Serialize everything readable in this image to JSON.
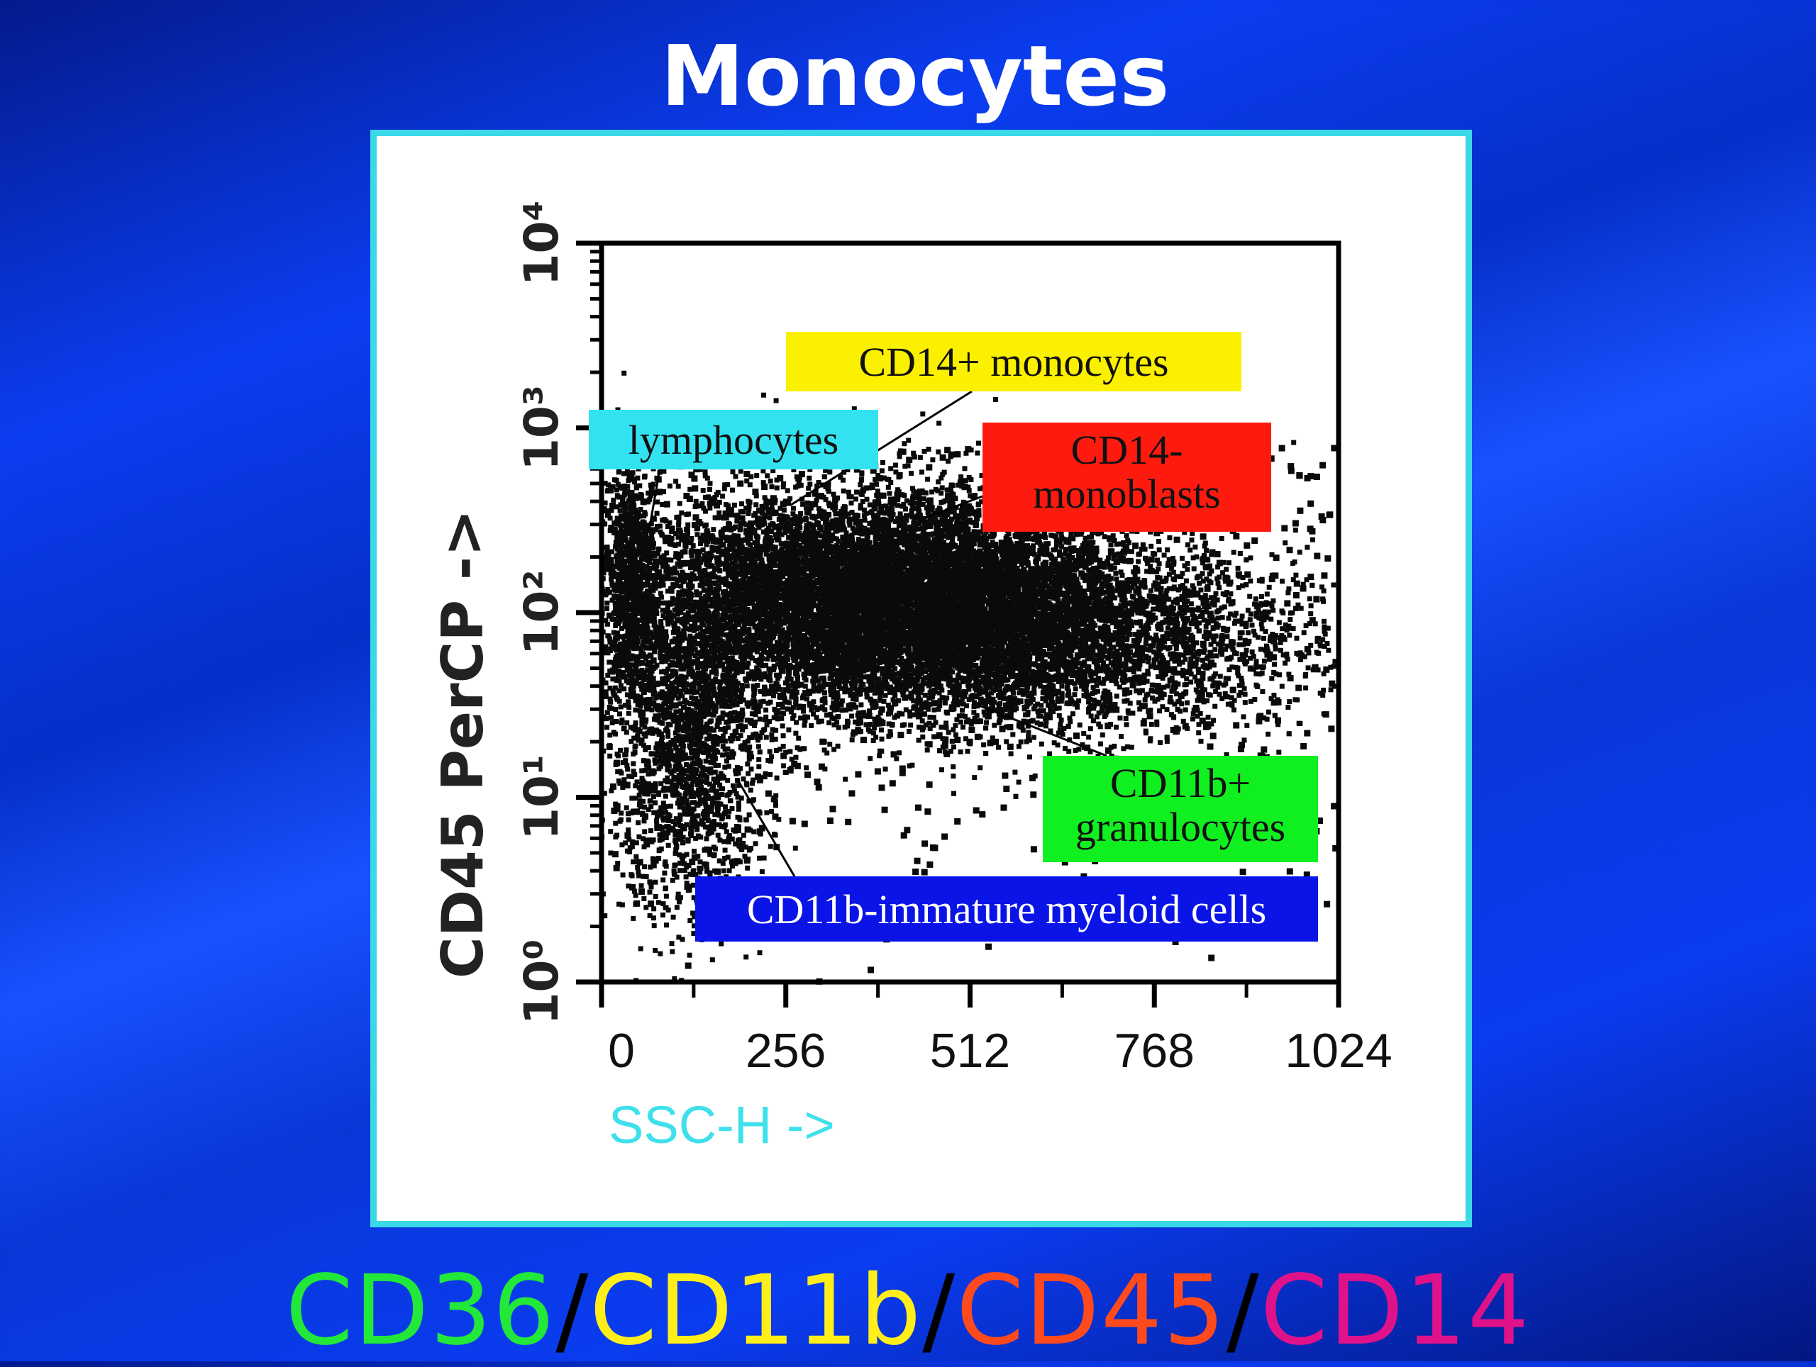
{
  "slide": {
    "title": "Monocytes",
    "bottom_markers": [
      {
        "text": "CD36",
        "color": "#22e83a"
      },
      {
        "text": "/",
        "color": "#000000"
      },
      {
        "text": "CD11b",
        "color": "#ffee1a"
      },
      {
        "text": "/",
        "color": "#000000"
      },
      {
        "text": "CD45",
        "color": "#ff4a1e"
      },
      {
        "text": "/",
        "color": "#000000"
      },
      {
        "text": "CD14",
        "color": "#e0128a"
      }
    ]
  },
  "chart_data": {
    "type": "scatter",
    "xlabel": "SSC-H ->",
    "ylabel": "CD45 PerCP ->",
    "xlim": [
      0,
      1024
    ],
    "ylim_log10": [
      0,
      4
    ],
    "y_scale": "log",
    "x_ticks": [
      "0",
      "256",
      "512",
      "768",
      "1024"
    ],
    "x_tick_values": [
      0,
      256,
      512,
      768,
      1024
    ],
    "y_ticks": [
      "10⁰",
      "10¹",
      "10²",
      "10³",
      "10⁴"
    ],
    "y_tick_values": [
      0,
      1,
      2,
      3,
      4
    ],
    "colors": {
      "xlabel": "#3ee0ec",
      "points": "#0a0a0a"
    },
    "populations": [
      {
        "label": "lymphocytes",
        "box_color": "#33e2f0",
        "text_color": "#111111",
        "cx": 40,
        "cy_log": 2.15,
        "sx": 20,
        "sy_log": 0.35,
        "count": 900
      },
      {
        "label": "CD14+ monocytes",
        "box_color": "#fbf000",
        "text_color": "#111111",
        "cx": 300,
        "cy_log": 2.1,
        "sx": 140,
        "sy_log": 0.28,
        "count": 5000
      },
      {
        "label": "CD14-\nmonoblasts",
        "box_color": "#ff1a10",
        "text_color": "#111111",
        "cx": 500,
        "cy_log": 2.15,
        "sx": 130,
        "sy_log": 0.28,
        "count": 3500
      },
      {
        "label": "CD11b+\ngranulocytes",
        "box_color": "#10f020",
        "text_color": "#111111",
        "cx": 560,
        "cy_log": 1.85,
        "sx": 210,
        "sy_log": 0.25,
        "count": 5500
      },
      {
        "label": "CD11b-immature myeloid cells",
        "box_color": "#0a14e6",
        "text_color": "#ffffff",
        "cx": 120,
        "cy_log": 1.25,
        "sx": 55,
        "sy_log": 0.45,
        "count": 1800
      }
    ],
    "scatter_points": {
      "sparse_count": 700,
      "x_range": [
        0,
        1024
      ],
      "y_log_range": [
        0.0,
        2.9
      ]
    }
  }
}
